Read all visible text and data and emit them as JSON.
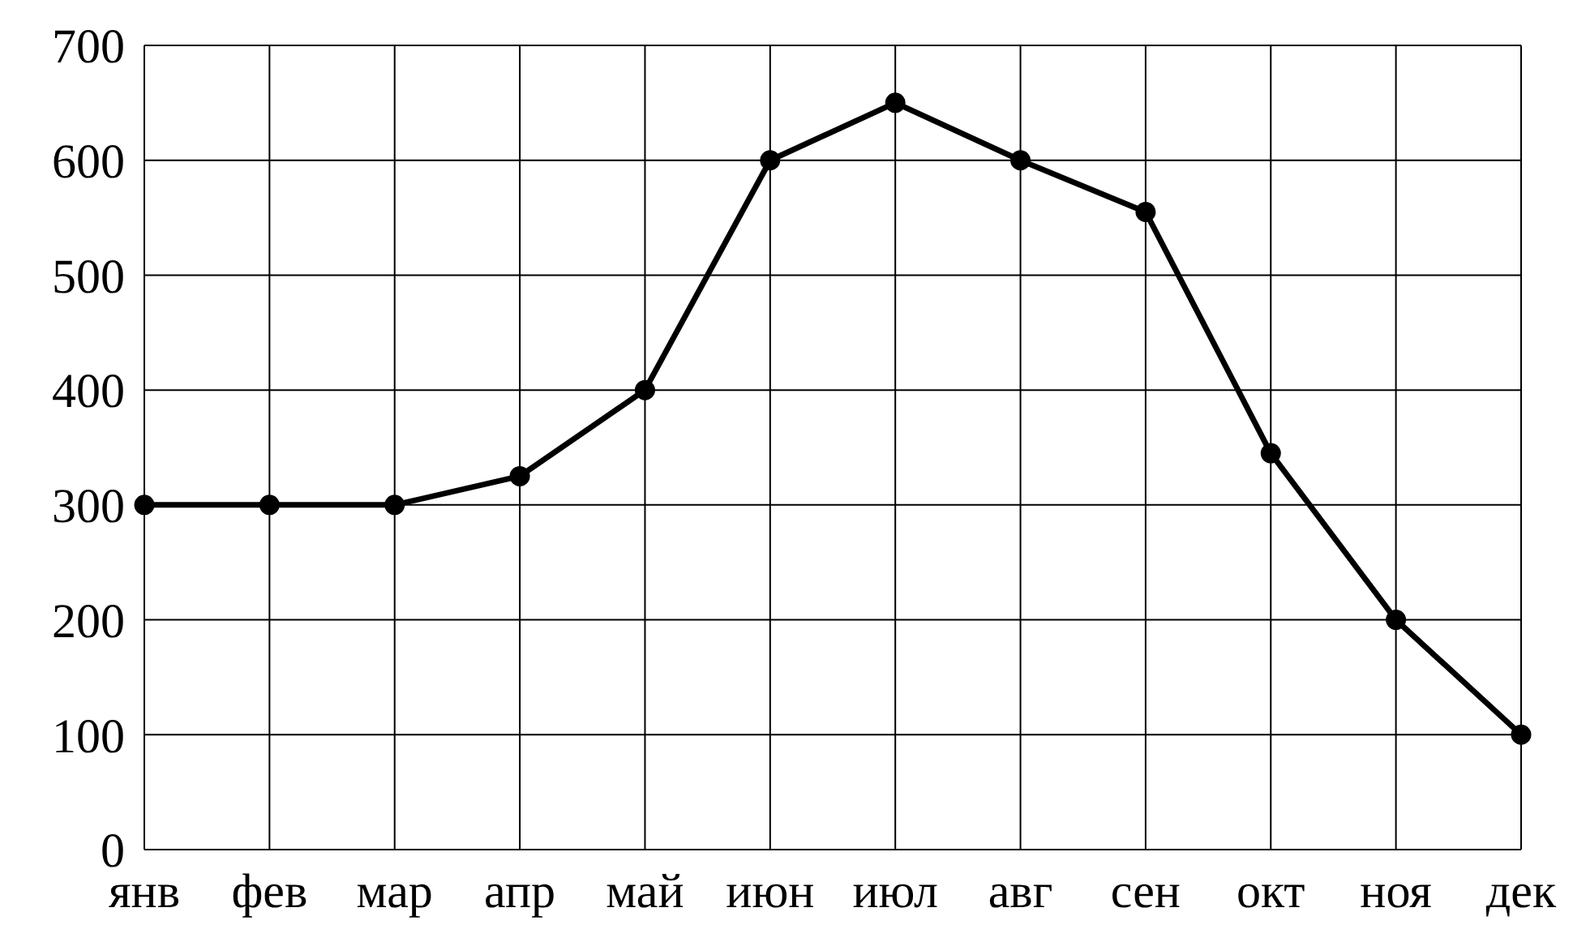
{
  "chart_data": {
    "type": "line",
    "categories": [
      "янв",
      "фев",
      "мар",
      "апр",
      "май",
      "июн",
      "июл",
      "авг",
      "сен",
      "окт",
      "ноя",
      "дек"
    ],
    "series": [
      {
        "color": "#000000",
        "values": [
          300,
          300,
          300,
          325,
          400,
          600,
          650,
          600,
          555,
          345,
          200,
          100
        ]
      }
    ],
    "ylim": [
      0,
      700
    ],
    "yticks": [
      0,
      100,
      200,
      300,
      400,
      500,
      600,
      700
    ],
    "grid": true,
    "marker": "circle",
    "line_style": "solid",
    "legend": false
  }
}
